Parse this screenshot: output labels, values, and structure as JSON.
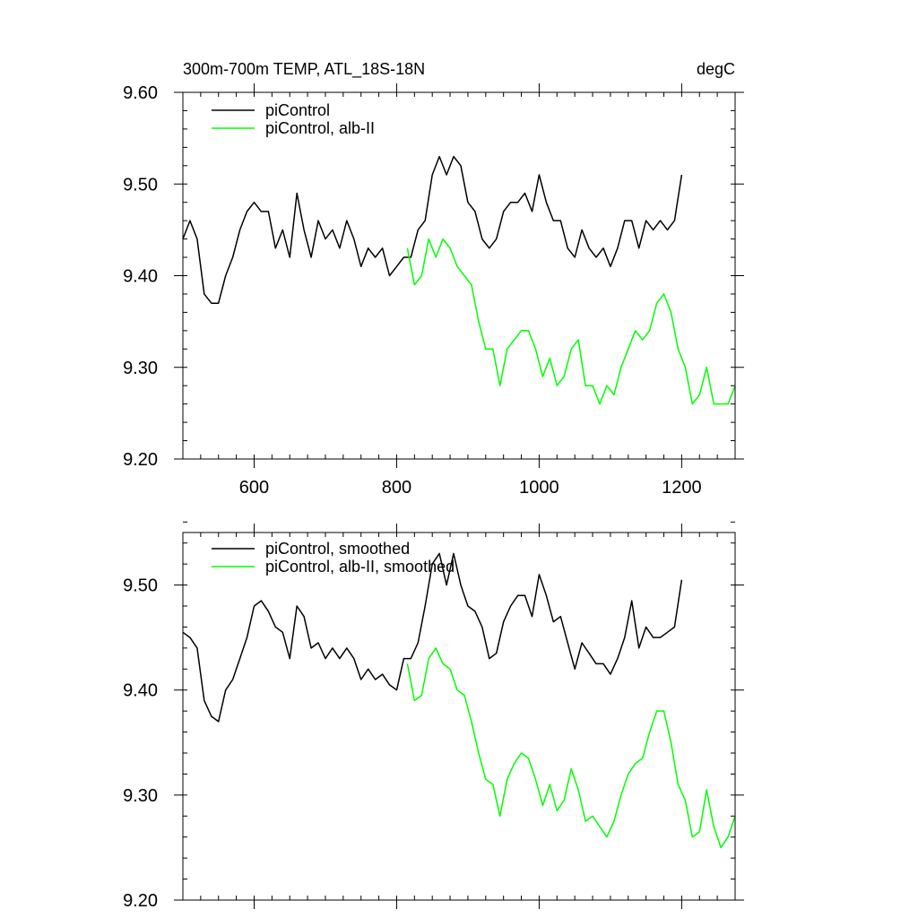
{
  "chart_data": [
    {
      "type": "line",
      "title": "300m-700m TEMP, ATL_18S-18N",
      "units": "degC",
      "xlim": [
        500,
        1275
      ],
      "ylim": [
        9.2,
        9.6
      ],
      "xticks": [
        600,
        800,
        1000,
        1200
      ],
      "xtick_labels": [
        "600",
        "800",
        "1000",
        "1200"
      ],
      "yticks": [
        9.2,
        9.3,
        9.4,
        9.5,
        9.6
      ],
      "ytick_labels": [
        "9.20",
        "9.30",
        "9.40",
        "9.50",
        "9.60"
      ],
      "legend_placement": "top-left",
      "series": [
        {
          "name": "piControl",
          "color": "#000000",
          "x": [
            500,
            510,
            520,
            530,
            540,
            550,
            560,
            570,
            580,
            590,
            600,
            610,
            620,
            630,
            640,
            650,
            660,
            670,
            680,
            690,
            700,
            710,
            720,
            730,
            740,
            750,
            760,
            770,
            780,
            790,
            800,
            810,
            820,
            830,
            840,
            850,
            860,
            870,
            880,
            890,
            900,
            910,
            920,
            930,
            940,
            950,
            960,
            970,
            980,
            990,
            1000,
            1010,
            1020,
            1030,
            1040,
            1050,
            1060,
            1070,
            1080,
            1090,
            1100,
            1110,
            1120,
            1130,
            1140,
            1150,
            1160,
            1170,
            1180,
            1190,
            1200
          ],
          "y": [
            9.44,
            9.46,
            9.44,
            9.38,
            9.37,
            9.37,
            9.4,
            9.42,
            9.45,
            9.47,
            9.48,
            9.47,
            9.47,
            9.43,
            9.45,
            9.42,
            9.49,
            9.45,
            9.42,
            9.46,
            9.44,
            9.45,
            9.43,
            9.46,
            9.44,
            9.41,
            9.43,
            9.42,
            9.43,
            9.4,
            9.41,
            9.42,
            9.42,
            9.45,
            9.46,
            9.51,
            9.53,
            9.51,
            9.53,
            9.52,
            9.48,
            9.47,
            9.44,
            9.43,
            9.44,
            9.47,
            9.48,
            9.48,
            9.49,
            9.47,
            9.51,
            9.48,
            9.46,
            9.46,
            9.43,
            9.42,
            9.45,
            9.43,
            9.42,
            9.43,
            9.41,
            9.43,
            9.46,
            9.46,
            9.43,
            9.46,
            9.45,
            9.46,
            9.45,
            9.46,
            9.51
          ]
        },
        {
          "name": "piControl, alb-II",
          "color": "#00ff00",
          "x": [
            815,
            825,
            835,
            845,
            855,
            865,
            875,
            885,
            895,
            905,
            915,
            925,
            935,
            945,
            955,
            965,
            975,
            985,
            995,
            1005,
            1015,
            1025,
            1035,
            1045,
            1055,
            1065,
            1075,
            1085,
            1095,
            1105,
            1115,
            1125,
            1135,
            1145,
            1155,
            1165,
            1175,
            1185,
            1195,
            1205,
            1215,
            1225,
            1235,
            1245,
            1255,
            1265,
            1275
          ],
          "y": [
            9.43,
            9.39,
            9.4,
            9.44,
            9.42,
            9.44,
            9.43,
            9.41,
            9.4,
            9.39,
            9.35,
            9.32,
            9.32,
            9.28,
            9.32,
            9.33,
            9.34,
            9.34,
            9.32,
            9.29,
            9.31,
            9.28,
            9.29,
            9.32,
            9.33,
            9.28,
            9.28,
            9.26,
            9.28,
            9.27,
            9.3,
            9.32,
            9.34,
            9.33,
            9.34,
            9.37,
            9.38,
            9.36,
            9.32,
            9.3,
            9.26,
            9.27,
            9.3,
            9.26,
            9.26,
            9.26,
            9.28
          ]
        }
      ]
    },
    {
      "type": "line",
      "xlim": [
        500,
        1275
      ],
      "ylim": [
        9.2,
        9.55
      ],
      "xticks": [
        600,
        800,
        1000,
        1200
      ],
      "yticks": [
        9.2,
        9.3,
        9.4,
        9.5
      ],
      "ytick_labels": [
        "9.20",
        "9.30",
        "9.40",
        "9.50"
      ],
      "legend_placement": "top-left",
      "series": [
        {
          "name": "piControl, smoothed",
          "color": "#000000",
          "x": [
            500,
            510,
            520,
            530,
            540,
            550,
            560,
            570,
            580,
            590,
            600,
            610,
            620,
            630,
            640,
            650,
            660,
            670,
            680,
            690,
            700,
            710,
            720,
            730,
            740,
            750,
            760,
            770,
            780,
            790,
            800,
            810,
            820,
            830,
            840,
            850,
            860,
            870,
            880,
            890,
            900,
            910,
            920,
            930,
            940,
            950,
            960,
            970,
            980,
            990,
            1000,
            1010,
            1020,
            1030,
            1040,
            1050,
            1060,
            1070,
            1080,
            1090,
            1100,
            1110,
            1120,
            1130,
            1140,
            1150,
            1160,
            1170,
            1180,
            1190,
            1200
          ],
          "y": [
            9.455,
            9.45,
            9.44,
            9.39,
            9.375,
            9.37,
            9.4,
            9.41,
            9.43,
            9.45,
            9.48,
            9.485,
            9.475,
            9.46,
            9.455,
            9.43,
            9.48,
            9.47,
            9.44,
            9.445,
            9.43,
            9.44,
            9.43,
            9.44,
            9.43,
            9.41,
            9.42,
            9.41,
            9.415,
            9.405,
            9.4,
            9.43,
            9.43,
            9.445,
            9.48,
            9.52,
            9.53,
            9.5,
            9.53,
            9.5,
            9.48,
            9.475,
            9.46,
            9.43,
            9.435,
            9.465,
            9.48,
            9.49,
            9.49,
            9.47,
            9.51,
            9.49,
            9.465,
            9.47,
            9.445,
            9.42,
            9.445,
            9.435,
            9.425,
            9.425,
            9.415,
            9.43,
            9.45,
            9.485,
            9.44,
            9.46,
            9.45,
            9.45,
            9.455,
            9.46,
            9.505
          ]
        },
        {
          "name": "piControl, alb-II, smoothed",
          "color": "#00ff00",
          "x": [
            815,
            825,
            835,
            845,
            855,
            865,
            875,
            885,
            895,
            905,
            915,
            925,
            935,
            945,
            955,
            965,
            975,
            985,
            995,
            1005,
            1015,
            1025,
            1035,
            1045,
            1055,
            1065,
            1075,
            1085,
            1095,
            1105,
            1115,
            1125,
            1135,
            1145,
            1155,
            1165,
            1175,
            1185,
            1195,
            1205,
            1215,
            1225,
            1235,
            1245,
            1255,
            1265,
            1275
          ],
          "y": [
            9.425,
            9.39,
            9.395,
            9.43,
            9.44,
            9.425,
            9.42,
            9.4,
            9.395,
            9.37,
            9.34,
            9.315,
            9.31,
            9.28,
            9.315,
            9.33,
            9.34,
            9.335,
            9.315,
            9.29,
            9.31,
            9.285,
            9.295,
            9.325,
            9.305,
            9.275,
            9.28,
            9.27,
            9.26,
            9.275,
            9.3,
            9.32,
            9.33,
            9.335,
            9.36,
            9.38,
            9.38,
            9.35,
            9.31,
            9.295,
            9.26,
            9.265,
            9.305,
            9.27,
            9.25,
            9.26,
            9.28
          ]
        }
      ]
    }
  ]
}
